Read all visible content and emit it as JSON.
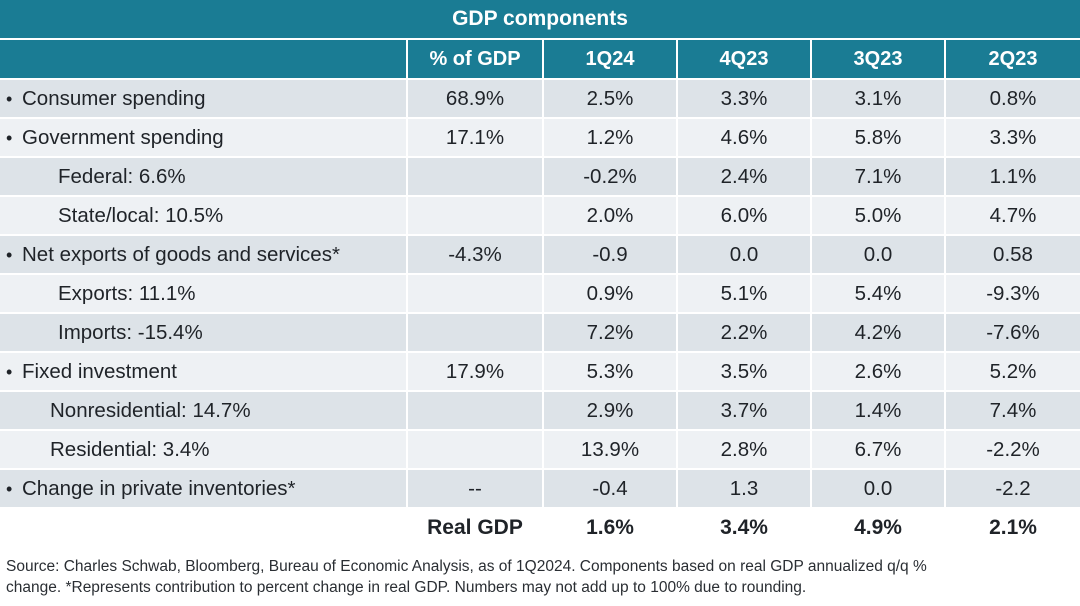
{
  "title": "GDP components",
  "headers": [
    "",
    "% of GDP",
    "1Q24",
    "4Q23",
    "3Q23",
    "2Q23"
  ],
  "bullet": "•",
  "rows": [
    {
      "label": "Consumer spending",
      "level": "main",
      "pct": "68.9%",
      "values": [
        "2.5%",
        "3.3%",
        "3.1%",
        "0.8%"
      ]
    },
    {
      "label": "Government spending",
      "level": "main",
      "pct": "17.1%",
      "values": [
        "1.2%",
        "4.6%",
        "5.8%",
        "3.3%"
      ]
    },
    {
      "label": "Federal: 6.6%",
      "level": "sub",
      "pct": "",
      "values": [
        "-0.2%",
        "2.4%",
        "7.1%",
        "1.1%"
      ]
    },
    {
      "label": "State/local: 10.5%",
      "level": "sub",
      "pct": "",
      "values": [
        "2.0%",
        "6.0%",
        "5.0%",
        "4.7%"
      ]
    },
    {
      "label": "Net exports of goods and services*",
      "level": "main",
      "pct": "-4.3%",
      "values": [
        "-0.9",
        "0.0",
        "0.0",
        "0.58"
      ]
    },
    {
      "label": "Exports: 11.1%",
      "level": "sub",
      "pct": "",
      "values": [
        "0.9%",
        "5.1%",
        "5.4%",
        "-9.3%"
      ]
    },
    {
      "label": "Imports: -15.4%",
      "level": "sub",
      "pct": "",
      "values": [
        "7.2%",
        "2.2%",
        "4.2%",
        "-7.6%"
      ]
    },
    {
      "label": "Fixed investment",
      "level": "main",
      "pct": "17.9%",
      "values": [
        "5.3%",
        "3.5%",
        "2.6%",
        "5.2%"
      ]
    },
    {
      "label": "Nonresidential: 14.7%",
      "level": "sub2",
      "pct": "",
      "values": [
        "2.9%",
        "3.7%",
        "1.4%",
        "7.4%"
      ]
    },
    {
      "label": "Residential: 3.4%",
      "level": "sub2",
      "pct": "",
      "values": [
        "13.9%",
        "2.8%",
        "6.7%",
        "-2.2%"
      ]
    },
    {
      "label": "Change in private inventories*",
      "level": "main",
      "pct": "--",
      "values": [
        "-0.4",
        "1.3",
        "0.0",
        "-2.2"
      ]
    }
  ],
  "total": {
    "label": "Real GDP",
    "values": [
      "1.6%",
      "3.4%",
      "4.9%",
      "2.1%"
    ]
  },
  "source_line1": "Source: Charles Schwab, Bloomberg, Bureau of Economic Analysis, as of 1Q2024. Components based on real GDP annualized q/q %",
  "source_line2": "change. *Represents contribution to percent change in real GDP. Numbers may not add up to 100% due to rounding.",
  "colors": {
    "header_bg": "#1a7c94",
    "row_shade": "#dde3e8",
    "row_plain": "#eef1f4"
  }
}
